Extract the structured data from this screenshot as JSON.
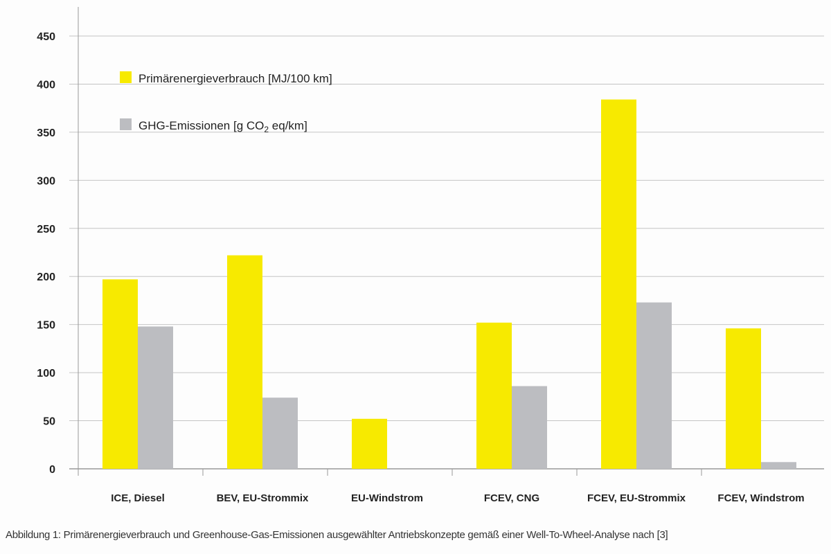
{
  "chart_data": {
    "type": "bar",
    "title": "",
    "xlabel": "",
    "ylabel": "",
    "ylim": [
      0,
      450
    ],
    "yticks": [
      0,
      50,
      100,
      150,
      200,
      250,
      300,
      350,
      400,
      450
    ],
    "grid": true,
    "legend_position": "top-left",
    "categories": [
      "ICE, Diesel",
      "BEV, EU-Strommix",
      "EU-Windstrom",
      "FCEV, CNG",
      "FCEV, EU-Strommix",
      "FCEV, Windstrom"
    ],
    "series": [
      {
        "name": "Primärenergieverbrauch [MJ/100 km]",
        "color": "#f7ea00",
        "values": [
          197,
          222,
          52,
          152,
          384,
          146
        ]
      },
      {
        "name": "GHG-Emissionen [g CO2 eq/km]",
        "legend_parts": [
          "GHG-Emissionen [g CO",
          "2",
          " eq/km]"
        ],
        "color": "#bcbdc1",
        "values": [
          148,
          74,
          0,
          86,
          173,
          7
        ]
      }
    ]
  },
  "caption": "Abbildung 1: Primärenergieverbrauch und Greenhouse-Gas-Emissionen ausgewählter Antriebskonzepte gemäß einer Well-To-Wheel-Analyse nach [3]"
}
